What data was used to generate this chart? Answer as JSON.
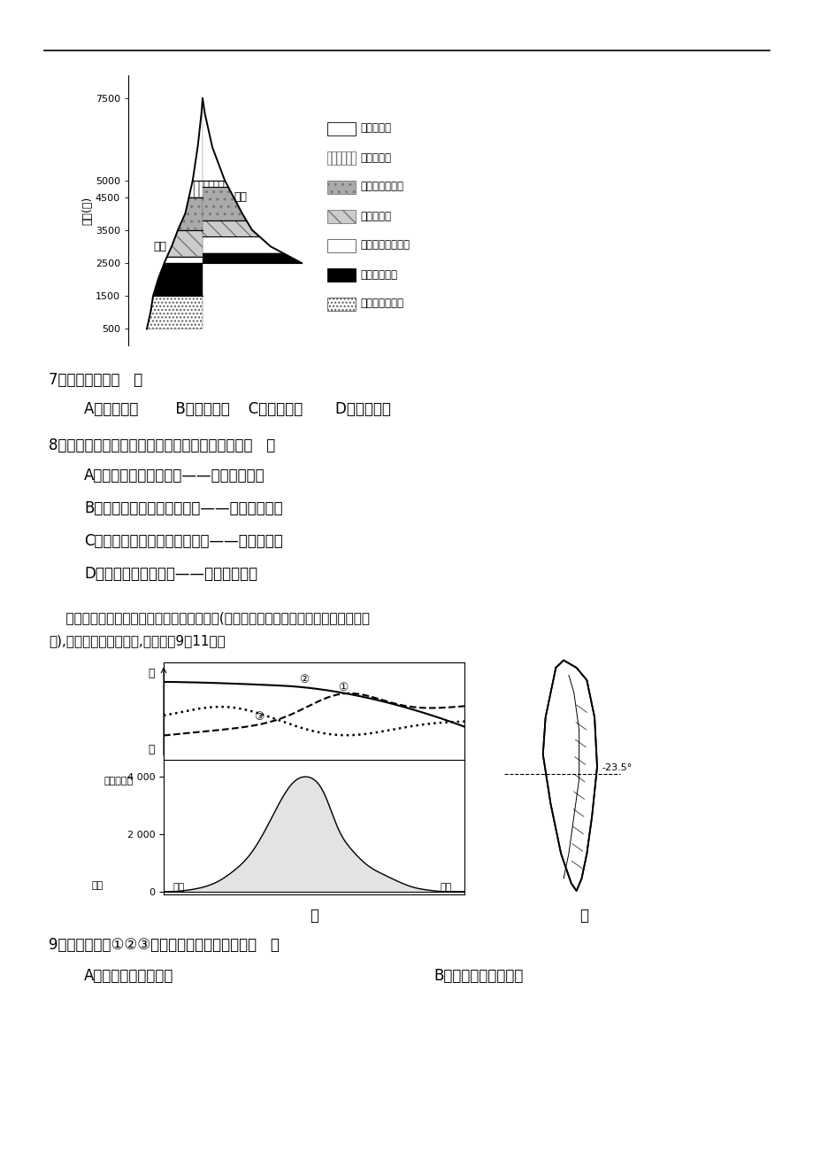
{
  "bg_color": "#ffffff",
  "q7_text": "7．该山体位于（   ）",
  "q7_options": "A．天山山脉        B．太行山脉    C．南岭山脉       D．横断山区",
  "q8_text": "8．该山体垂直带谱分布特征与成因匹配正确的是（   ）",
  "q8_A": "A．东坡带谱比西坡复杂——东坡降水丰富",
  "q8_B": "B．西坡高山灌丛草甸带偏高——西坡热量较高",
  "q8_C": "C．东坡干旱河谷灌丛带的形成——盛行西北风",
  "q8_D": "D．西坡雪线比东坡高——东坡地势降峨",
  "intro_text": "    下图中甲为回归线附近某岛屿的地形剖面图(其上部是该区相关气象要素氿剖面线变化",
  "intro_text2": "图),乙为该岛地形示意图,读图回筀9～11题。",
  "q9_text": "9．图甲中曲线①②③所代表的气象要素分别是（   ）",
  "q9_A": "A．降水、气温、光照",
  "q9_B": "B．气温、光照、降水",
  "ylabel_mountain": "海拔(米)",
  "west_slope_label": "西坡",
  "east_slope_label": "东坡",
  "legend_items": [
    "积雪冰川带",
    "高山草甸带",
    "高山灌丛草甸带",
    "高山针叶林",
    "山地针阔混交林带",
    "常绻阔叶林带",
    "干旱河谷灌丛带"
  ],
  "da_label": "大",
  "xiao_label": "小",
  "gaodu_label": "高度（米）",
  "haiyang_label": "海洋",
  "jia_label": "甲",
  "yi_label": "乙",
  "23degree": "23.5°"
}
